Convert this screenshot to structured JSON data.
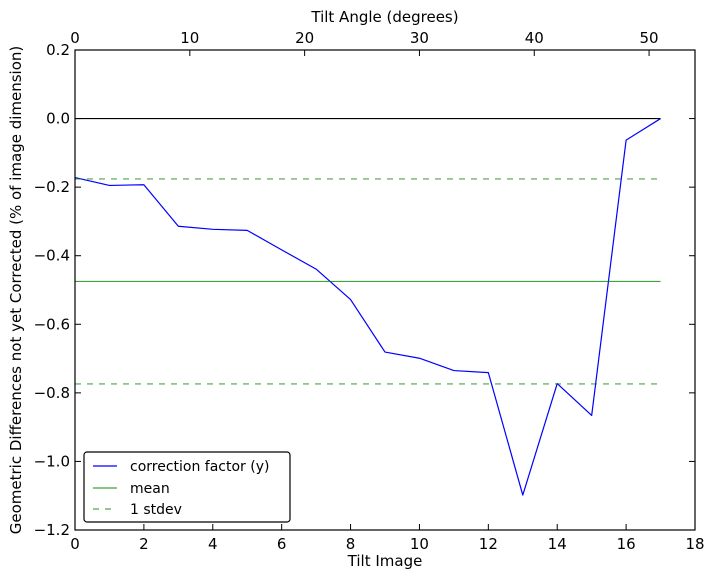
{
  "chart_data": {
    "type": "line",
    "title": "",
    "xlabel": "Tilt Image",
    "ylabel": "Geometric Differences not yet Corrected (% of image dimension)",
    "top_xlabel": "Tilt Angle (degrees)",
    "xlim": [
      0,
      18
    ],
    "ylim": [
      -1.2,
      0.2
    ],
    "xticks": [
      0,
      2,
      4,
      6,
      8,
      10,
      12,
      14,
      16,
      18
    ],
    "yticks": [
      -1.2,
      -1.0,
      -0.8,
      -0.6,
      -0.4,
      -0.2,
      0.0,
      0.2
    ],
    "xtick_labels": [
      "0",
      "2",
      "4",
      "6",
      "8",
      "10",
      "12",
      "14",
      "16",
      "18"
    ],
    "ytick_labels": [
      "−1.2",
      "−1.0",
      "−0.8",
      "−0.6",
      "−0.4",
      "−0.2",
      "0.0",
      "0.2"
    ],
    "top_xlim": [
      0,
      54
    ],
    "top_xticks": [
      0,
      10,
      20,
      30,
      40,
      50
    ],
    "top_xtick_labels": [
      "0",
      "10",
      "20",
      "30",
      "40",
      "50"
    ],
    "grid": false,
    "legend_position": "lower-left",
    "series": [
      {
        "name": "correction factor (y)",
        "color": "#0000ff",
        "style": "solid",
        "x": [
          0,
          1,
          2,
          3,
          4,
          5,
          6,
          7,
          8,
          9,
          10,
          11,
          12,
          13,
          14,
          15,
          16,
          17
        ],
        "y": [
          -0.172,
          -0.195,
          -0.193,
          -0.314,
          -0.323,
          -0.326,
          -0.383,
          -0.439,
          -0.528,
          -0.681,
          -0.699,
          -0.735,
          -0.741,
          -1.098,
          -0.773,
          -0.866,
          -0.063,
          0.0
        ]
      },
      {
        "name": "mean",
        "color": "#008000",
        "style": "solid",
        "x": [
          0,
          17
        ],
        "y": [
          -0.475,
          -0.475
        ]
      },
      {
        "name": "1 stdev",
        "color": "#008000",
        "style": "dashed",
        "x": [
          0,
          17
        ],
        "y": [
          -0.176,
          -0.176
        ]
      },
      {
        "name": "",
        "color": "#008000",
        "style": "dashed",
        "x": [
          0,
          17
        ],
        "y": [
          -0.774,
          -0.774
        ]
      },
      {
        "name": "",
        "color": "#000000",
        "style": "solid",
        "x": [
          0,
          17
        ],
        "y": [
          0.0,
          0.0
        ]
      }
    ],
    "legend": [
      "correction factor (y)",
      "mean",
      "1 stdev"
    ]
  }
}
